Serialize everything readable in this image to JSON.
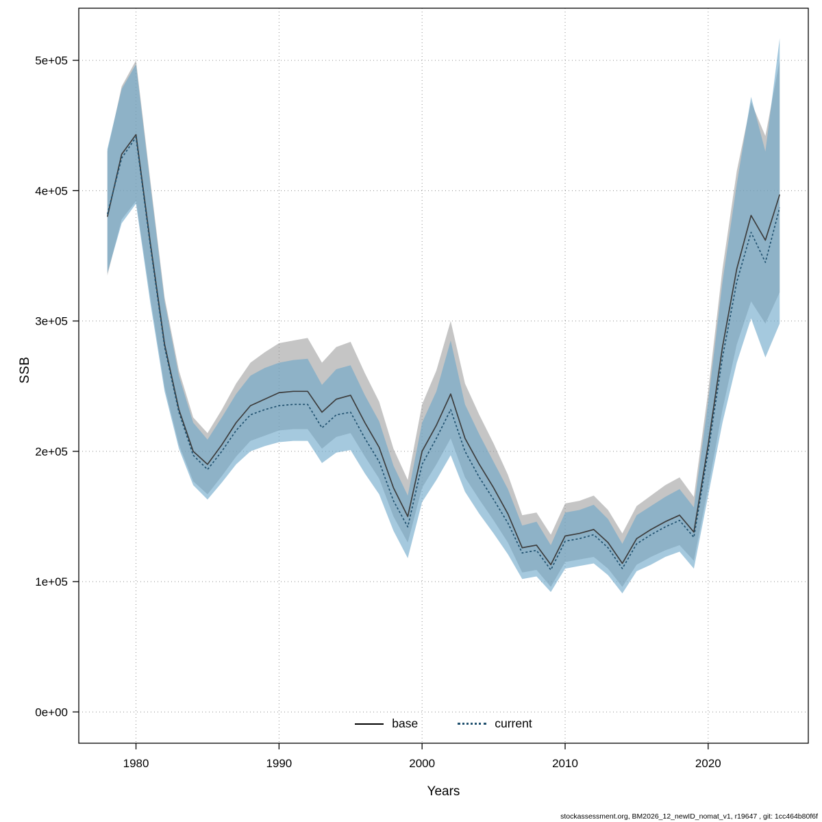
{
  "axes": {
    "x_label": "Years",
    "y_label": "SSB",
    "x_tick_values": [
      1980,
      1990,
      2000,
      2010,
      2020
    ],
    "x_tick_labels": [
      "1980",
      "1990",
      "2000",
      "2010",
      "2020"
    ],
    "y_tick_values": [
      0,
      100000,
      200000,
      300000,
      400000,
      500000
    ],
    "y_tick_labels": [
      "0e+00",
      "1e+05",
      "2e+05",
      "3e+05",
      "4e+05",
      "5e+05"
    ]
  },
  "legend": {
    "items": [
      {
        "label": "base",
        "line_style": "solid",
        "color": "#000000"
      },
      {
        "label": "current",
        "line_style": "dotted",
        "color": "#1f506e"
      }
    ]
  },
  "footer": {
    "text": "stockassessment.org, BM2026_12_newID_nomat_v1, r19647 , git: 1cc464b80f6f"
  },
  "chart_data": {
    "type": "line",
    "title": "",
    "xlabel": "Years",
    "ylabel": "SSB",
    "xlim": [
      1976,
      2027
    ],
    "ylim": [
      -24000,
      540000
    ],
    "grid": "dotted",
    "legend_position": "bottom-center-inside",
    "x": [
      1978,
      1979,
      1980,
      1981,
      1982,
      1983,
      1984,
      1985,
      1986,
      1987,
      1988,
      1989,
      1990,
      1991,
      1992,
      1993,
      1994,
      1995,
      1996,
      1997,
      1998,
      1999,
      2000,
      2001,
      2002,
      2003,
      2004,
      2005,
      2006,
      2007,
      2008,
      2009,
      2010,
      2011,
      2012,
      2013,
      2014,
      2015,
      2016,
      2017,
      2018,
      2019,
      2020,
      2021,
      2022,
      2023,
      2024,
      2025
    ],
    "series": [
      {
        "name": "base",
        "line_style": "solid",
        "line_color": "#3c3c3c",
        "band_color": "#8c8c8c",
        "band_opacity": 0.5,
        "values": [
          380000,
          428000,
          443000,
          360000,
          282000,
          232000,
          200000,
          190000,
          205000,
          222000,
          235000,
          240000,
          245000,
          246000,
          246000,
          230000,
          240000,
          243000,
          222000,
          203000,
          172000,
          150000,
          200000,
          220000,
          244000,
          210000,
          190000,
          172000,
          152000,
          126000,
          128000,
          113000,
          135000,
          137000,
          140000,
          130000,
          114000,
          133000,
          140000,
          146000,
          151000,
          138000,
          205000,
          280000,
          340000,
          381000,
          362000,
          397000
        ],
        "upper": [
          430000,
          480000,
          500000,
          408000,
          318000,
          262000,
          226000,
          214000,
          232000,
          252000,
          268000,
          276000,
          283000,
          285000,
          287000,
          268000,
          280000,
          284000,
          260000,
          238000,
          202000,
          178000,
          236000,
          262000,
          300000,
          252000,
          228000,
          206000,
          182000,
          151000,
          153000,
          136000,
          160000,
          162000,
          166000,
          155000,
          137000,
          158000,
          166000,
          174000,
          180000,
          165000,
          246000,
          340000,
          415000,
          468000,
          442000,
          500000
        ],
        "lower": [
          335000,
          378000,
          392000,
          318000,
          249000,
          205000,
          177000,
          167000,
          181000,
          196000,
          208000,
          212000,
          216000,
          217000,
          217000,
          202000,
          211000,
          214000,
          196000,
          179000,
          150000,
          130000,
          172000,
          190000,
          210000,
          180000,
          163000,
          147000,
          130000,
          107000,
          109000,
          96000,
          115000,
          117000,
          119000,
          110000,
          96000,
          113000,
          119000,
          124000,
          128000,
          116000,
          172000,
          232000,
          282000,
          315000,
          298000,
          322000
        ]
      },
      {
        "name": "current",
        "line_style": "dotted",
        "line_color": "#1f506e",
        "band_color": "#69a5c8",
        "band_opacity": 0.6,
        "values": [
          382000,
          425000,
          441000,
          358000,
          280000,
          230000,
          197000,
          186000,
          200000,
          216000,
          228000,
          232000,
          235000,
          236000,
          236000,
          218000,
          228000,
          230000,
          210000,
          192000,
          162000,
          142000,
          190000,
          210000,
          232000,
          200000,
          180000,
          163000,
          145000,
          122000,
          124000,
          109000,
          131000,
          133000,
          136000,
          126000,
          110000,
          129000,
          136000,
          142000,
          147000,
          134000,
          200000,
          272000,
          330000,
          368000,
          345000,
          387000
        ],
        "upper": [
          432000,
          478000,
          497000,
          405000,
          315000,
          258000,
          222000,
          209000,
          226000,
          244000,
          258000,
          264000,
          268000,
          270000,
          271000,
          251000,
          263000,
          266000,
          243000,
          223000,
          189000,
          166000,
          222000,
          246000,
          285000,
          236000,
          213000,
          192000,
          171000,
          143000,
          146000,
          128000,
          153000,
          155000,
          159000,
          148000,
          129000,
          151000,
          158000,
          165000,
          171000,
          157000,
          238000,
          330000,
          405000,
          472000,
          430000,
          517000
        ],
        "lower": [
          337000,
          375000,
          390000,
          314000,
          246000,
          202000,
          174000,
          163000,
          176000,
          190000,
          200000,
          204000,
          207000,
          208000,
          208000,
          191000,
          199000,
          201000,
          183000,
          167000,
          139000,
          118000,
          161000,
          178000,
          197000,
          169000,
          152000,
          137000,
          121000,
          102000,
          104000,
          92000,
          110000,
          112000,
          114000,
          105000,
          91000,
          108000,
          113000,
          119000,
          123000,
          110000,
          166000,
          222000,
          268000,
          302000,
          272000,
          298000
        ]
      }
    ]
  }
}
